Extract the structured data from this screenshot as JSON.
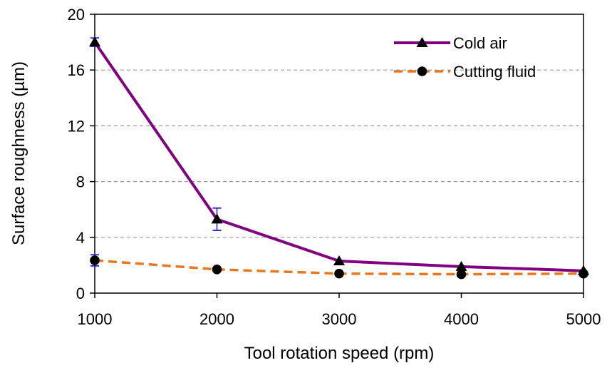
{
  "chart_data": {
    "type": "line",
    "xlabel": "Tool rotation speed (rpm)",
    "ylabel": "Surface roughness (µm)",
    "x": [
      1000,
      2000,
      3000,
      4000,
      5000
    ],
    "xlim": [
      1000,
      5000
    ],
    "ylim": [
      0,
      20
    ],
    "x_ticks": [
      "1000",
      "2000",
      "3000",
      "4000",
      "5000"
    ],
    "y_ticks": [
      "0",
      "4",
      "8",
      "12",
      "16",
      "20"
    ],
    "grid": "horizontal dashed",
    "legend_position": "top-right",
    "series": [
      {
        "name": "Cold air",
        "values": [
          18.0,
          5.3,
          2.3,
          1.9,
          1.6
        ],
        "error": [
          0.3,
          0.8,
          0.0,
          0.0,
          0.0
        ],
        "color": "#800080",
        "marker": "triangle",
        "line": "solid"
      },
      {
        "name": "Cutting fluid",
        "values": [
          2.35,
          1.7,
          1.4,
          1.35,
          1.4
        ],
        "error": [
          0.4,
          0.0,
          0.0,
          0.0,
          0.0
        ],
        "color": "#E87722",
        "marker": "circle",
        "line": "dashed"
      }
    ],
    "error_bar_color": "#1f1fcf"
  }
}
